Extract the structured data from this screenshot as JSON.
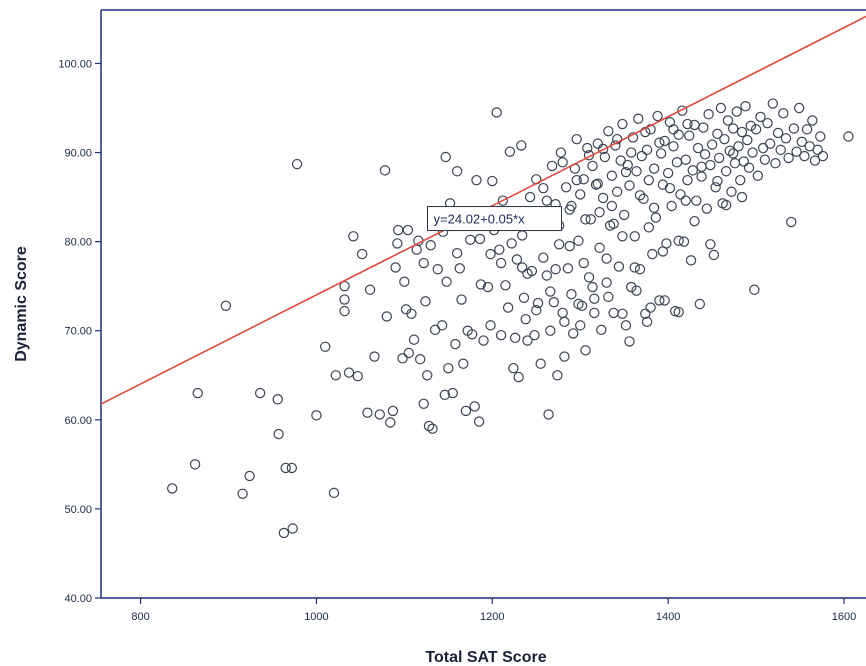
{
  "chart_data": {
    "type": "scatter",
    "title": "",
    "xlabel": "Total SAT Score",
    "ylabel": "Dynamic Score",
    "xlim": [
      755,
      1625
    ],
    "ylim": [
      40,
      106
    ],
    "x_ticks": [
      800,
      1000,
      1200,
      1400,
      1600
    ],
    "x_tick_labels": [
      "800",
      "1000",
      "1200",
      "1400",
      "1600"
    ],
    "y_ticks": [
      40,
      50,
      60,
      70,
      80,
      90,
      100
    ],
    "y_tick_labels": [
      "40.00",
      "50.00",
      "60.00",
      "70.00",
      "80.00",
      "90.00",
      "100.00"
    ],
    "grid": false,
    "fit_line": {
      "intercept": 24.02,
      "slope": 0.05,
      "label": "y=24.02+0.05*x"
    },
    "marker": {
      "shape": "open-circle",
      "color": "#3b4452"
    },
    "line_color": "#e0493a",
    "axis_color": "#1c2f7a",
    "points": [
      [
        836,
        52.3
      ],
      [
        862,
        55.0
      ],
      [
        865,
        63.0
      ],
      [
        897,
        72.8
      ],
      [
        916,
        51.7
      ],
      [
        924,
        53.7
      ],
      [
        936,
        63.0
      ],
      [
        956,
        62.3
      ],
      [
        957,
        58.4
      ],
      [
        963,
        47.3
      ],
      [
        965,
        54.6
      ],
      [
        972,
        54.6
      ],
      [
        973,
        47.8
      ],
      [
        978,
        88.7
      ],
      [
        1000,
        60.5
      ],
      [
        1010,
        68.2
      ],
      [
        1020,
        51.8
      ],
      [
        1022,
        65.0
      ],
      [
        1032,
        75.0
      ],
      [
        1032,
        73.5
      ],
      [
        1032,
        72.2
      ],
      [
        1037,
        65.3
      ],
      [
        1042,
        80.6
      ],
      [
        1047,
        64.9
      ],
      [
        1052,
        78.6
      ],
      [
        1058,
        60.8
      ],
      [
        1061,
        74.6
      ],
      [
        1066,
        67.1
      ],
      [
        1072,
        60.6
      ],
      [
        1078,
        88.0
      ],
      [
        1080,
        71.6
      ],
      [
        1084,
        59.7
      ],
      [
        1087,
        61.0
      ],
      [
        1090,
        77.1
      ],
      [
        1092,
        79.8
      ],
      [
        1093,
        81.3
      ],
      [
        1098,
        66.9
      ],
      [
        1100,
        75.5
      ],
      [
        1102,
        72.4
      ],
      [
        1104,
        81.3
      ],
      [
        1105,
        67.5
      ],
      [
        1108,
        71.9
      ],
      [
        1111,
        69.0
      ],
      [
        1114,
        79.1
      ],
      [
        1116,
        80.1
      ],
      [
        1118,
        66.8
      ],
      [
        1122,
        61.8
      ],
      [
        1124,
        73.3
      ],
      [
        1126,
        65.0
      ],
      [
        1128,
        59.3
      ],
      [
        1130,
        79.6
      ],
      [
        1132,
        59.0
      ],
      [
        1135,
        70.1
      ],
      [
        1138,
        76.9
      ],
      [
        1140,
        82.9
      ],
      [
        1143,
        70.6
      ],
      [
        1146,
        62.8
      ],
      [
        1147,
        89.5
      ],
      [
        1148,
        75.5
      ],
      [
        1150,
        65.8
      ],
      [
        1152,
        84.3
      ],
      [
        1155,
        63.0
      ],
      [
        1158,
        68.5
      ],
      [
        1160,
        87.9
      ],
      [
        1163,
        77.0
      ],
      [
        1165,
        73.5
      ],
      [
        1167,
        66.3
      ],
      [
        1170,
        61.0
      ],
      [
        1172,
        70.0
      ],
      [
        1175,
        80.2
      ],
      [
        1177,
        69.6
      ],
      [
        1180,
        61.5
      ],
      [
        1182,
        86.9
      ],
      [
        1185,
        59.8
      ],
      [
        1187,
        75.2
      ],
      [
        1190,
        68.9
      ],
      [
        1193,
        82.5
      ],
      [
        1195,
        74.9
      ],
      [
        1198,
        70.6
      ],
      [
        1200,
        86.8
      ],
      [
        1205,
        94.5
      ],
      [
        1208,
        79.1
      ],
      [
        1210,
        69.5
      ],
      [
        1212,
        84.6
      ],
      [
        1215,
        75.1
      ],
      [
        1218,
        72.6
      ],
      [
        1220,
        90.1
      ],
      [
        1224,
        65.8
      ],
      [
        1226,
        69.2
      ],
      [
        1228,
        78.0
      ],
      [
        1230,
        64.8
      ],
      [
        1233,
        90.8
      ],
      [
        1236,
        73.7
      ],
      [
        1238,
        71.3
      ],
      [
        1240,
        68.9
      ],
      [
        1243,
        85.0
      ],
      [
        1245,
        76.7
      ],
      [
        1248,
        69.5
      ],
      [
        1250,
        87.0
      ],
      [
        1252,
        73.1
      ],
      [
        1255,
        66.3
      ],
      [
        1258,
        86.0
      ],
      [
        1260,
        82.0
      ],
      [
        1262,
        76.2
      ],
      [
        1264,
        60.6
      ],
      [
        1266,
        70.0
      ],
      [
        1268,
        88.5
      ],
      [
        1270,
        73.2
      ],
      [
        1272,
        84.2
      ],
      [
        1274,
        65.0
      ],
      [
        1276,
        79.7
      ],
      [
        1278,
        90.0
      ],
      [
        1280,
        72.0
      ],
      [
        1282,
        67.1
      ],
      [
        1284,
        86.1
      ],
      [
        1286,
        77.0
      ],
      [
        1288,
        83.6
      ],
      [
        1290,
        74.1
      ],
      [
        1292,
        69.7
      ],
      [
        1294,
        88.2
      ],
      [
        1296,
        91.5
      ],
      [
        1298,
        80.1
      ],
      [
        1300,
        85.3
      ],
      [
        1302,
        72.8
      ],
      [
        1304,
        87.0
      ],
      [
        1306,
        67.8
      ],
      [
        1308,
        90.5
      ],
      [
        1310,
        76.0
      ],
      [
        1312,
        82.5
      ],
      [
        1314,
        88.5
      ],
      [
        1316,
        73.6
      ],
      [
        1318,
        86.4
      ],
      [
        1320,
        91.0
      ],
      [
        1322,
        79.3
      ],
      [
        1324,
        70.1
      ],
      [
        1326,
        84.9
      ],
      [
        1328,
        89.5
      ],
      [
        1330,
        75.4
      ],
      [
        1332,
        92.4
      ],
      [
        1334,
        81.8
      ],
      [
        1336,
        87.4
      ],
      [
        1338,
        72.0
      ],
      [
        1340,
        90.8
      ],
      [
        1342,
        85.6
      ],
      [
        1344,
        77.2
      ],
      [
        1346,
        89.1
      ],
      [
        1348,
        93.2
      ],
      [
        1350,
        83.0
      ],
      [
        1352,
        70.6
      ],
      [
        1354,
        88.6
      ],
      [
        1356,
        86.3
      ],
      [
        1358,
        74.9
      ],
      [
        1360,
        91.7
      ],
      [
        1362,
        80.6
      ],
      [
        1364,
        87.9
      ],
      [
        1366,
        93.8
      ],
      [
        1368,
        76.9
      ],
      [
        1370,
        89.6
      ],
      [
        1372,
        84.8
      ],
      [
        1374,
        71.9
      ],
      [
        1376,
        90.3
      ],
      [
        1378,
        86.9
      ],
      [
        1380,
        92.6
      ],
      [
        1382,
        78.6
      ],
      [
        1384,
        88.2
      ],
      [
        1386,
        82.7
      ],
      [
        1388,
        94.1
      ],
      [
        1390,
        73.4
      ],
      [
        1392,
        89.9
      ],
      [
        1394,
        86.4
      ],
      [
        1396,
        91.3
      ],
      [
        1398,
        79.8
      ],
      [
        1400,
        87.7
      ],
      [
        1402,
        93.4
      ],
      [
        1404,
        84.0
      ],
      [
        1406,
        90.7
      ],
      [
        1408,
        72.2
      ],
      [
        1410,
        88.9
      ],
      [
        1412,
        92.0
      ],
      [
        1414,
        85.3
      ],
      [
        1416,
        94.7
      ],
      [
        1418,
        80.0
      ],
      [
        1420,
        89.2
      ],
      [
        1422,
        86.9
      ],
      [
        1424,
        91.9
      ],
      [
        1426,
        77.9
      ],
      [
        1428,
        88.0
      ],
      [
        1430,
        93.1
      ],
      [
        1432,
        84.6
      ],
      [
        1434,
        90.5
      ],
      [
        1436,
        73.0
      ],
      [
        1438,
        87.3
      ],
      [
        1440,
        92.8
      ],
      [
        1442,
        89.8
      ],
      [
        1444,
        83.7
      ],
      [
        1446,
        94.3
      ],
      [
        1448,
        88.6
      ],
      [
        1450,
        90.9
      ],
      [
        1452,
        78.5
      ],
      [
        1454,
        86.1
      ],
      [
        1456,
        92.1
      ],
      [
        1458,
        89.4
      ],
      [
        1460,
        95.0
      ],
      [
        1462,
        84.3
      ],
      [
        1464,
        91.5
      ],
      [
        1466,
        87.9
      ],
      [
        1468,
        93.6
      ],
      [
        1470,
        90.2
      ],
      [
        1472,
        85.6
      ],
      [
        1474,
        92.7
      ],
      [
        1476,
        88.8
      ],
      [
        1478,
        94.6
      ],
      [
        1480,
        90.7
      ],
      [
        1482,
        86.9
      ],
      [
        1484,
        92.3
      ],
      [
        1486,
        89.0
      ],
      [
        1488,
        95.2
      ],
      [
        1490,
        91.4
      ],
      [
        1492,
        88.3
      ],
      [
        1494,
        93.0
      ],
      [
        1496,
        90.0
      ],
      [
        1498,
        74.6
      ],
      [
        1500,
        92.6
      ],
      [
        1502,
        87.4
      ],
      [
        1505,
        94.0
      ],
      [
        1508,
        90.5
      ],
      [
        1510,
        89.2
      ],
      [
        1513,
        93.3
      ],
      [
        1516,
        91.0
      ],
      [
        1519,
        95.5
      ],
      [
        1522,
        88.8
      ],
      [
        1525,
        92.2
      ],
      [
        1528,
        90.3
      ],
      [
        1531,
        94.4
      ],
      [
        1534,
        91.6
      ],
      [
        1537,
        89.4
      ],
      [
        1540,
        82.2
      ],
      [
        1543,
        92.7
      ],
      [
        1546,
        90.1
      ],
      [
        1549,
        95.0
      ],
      [
        1552,
        91.2
      ],
      [
        1555,
        89.6
      ],
      [
        1558,
        92.6
      ],
      [
        1561,
        90.7
      ],
      [
        1564,
        93.6
      ],
      [
        1567,
        89.1
      ],
      [
        1570,
        90.3
      ],
      [
        1573,
        91.8
      ],
      [
        1576,
        89.6
      ],
      [
        1605,
        91.8
      ],
      [
        1320,
        86.5
      ],
      [
        1336,
        84.0
      ],
      [
        1352,
        87.8
      ],
      [
        1368,
        85.2
      ],
      [
        1384,
        83.8
      ],
      [
        1402,
        86.0
      ],
      [
        1420,
        84.6
      ],
      [
        1438,
        88.4
      ],
      [
        1456,
        86.8
      ],
      [
        1474,
        89.9
      ],
      [
        1330,
        78.1
      ],
      [
        1348,
        80.6
      ],
      [
        1362,
        77.1
      ],
      [
        1378,
        81.6
      ],
      [
        1394,
        78.9
      ],
      [
        1412,
        80.1
      ],
      [
        1430,
        82.3
      ],
      [
        1448,
        79.7
      ],
      [
        1466,
        84.1
      ],
      [
        1484,
        85.0
      ],
      [
        1280,
        88.9
      ],
      [
        1296,
        86.9
      ],
      [
        1310,
        89.7
      ],
      [
        1326,
        90.4
      ],
      [
        1342,
        91.5
      ],
      [
        1358,
        90.0
      ],
      [
        1374,
        92.3
      ],
      [
        1390,
        91.1
      ],
      [
        1406,
        92.6
      ],
      [
        1422,
        93.2
      ],
      [
        1300,
        70.6
      ],
      [
        1316,
        72.0
      ],
      [
        1332,
        73.8
      ],
      [
        1348,
        71.9
      ],
      [
        1364,
        74.5
      ],
      [
        1380,
        72.6
      ],
      [
        1396,
        73.4
      ],
      [
        1412,
        72.1
      ],
      [
        1376,
        71.0
      ],
      [
        1356,
        68.8
      ],
      [
        1250,
        72.3
      ],
      [
        1266,
        74.4
      ],
      [
        1282,
        71.0
      ],
      [
        1298,
        73.0
      ],
      [
        1314,
        74.9
      ],
      [
        1240,
        76.4
      ],
      [
        1258,
        78.2
      ],
      [
        1272,
        76.9
      ],
      [
        1288,
        79.5
      ],
      [
        1304,
        77.6
      ],
      [
        1202,
        81.3
      ],
      [
        1218,
        83.0
      ],
      [
        1234,
        80.7
      ],
      [
        1248,
        82.4
      ],
      [
        1262,
        84.6
      ],
      [
        1276,
        81.8
      ],
      [
        1290,
        84.0
      ],
      [
        1306,
        82.5
      ],
      [
        1322,
        83.3
      ],
      [
        1338,
        82.0
      ],
      [
        1170,
        82.9
      ],
      [
        1186,
        80.3
      ],
      [
        1198,
        78.6
      ],
      [
        1210,
        77.6
      ],
      [
        1222,
        79.8
      ],
      [
        1234,
        77.1
      ],
      [
        1160,
        78.7
      ],
      [
        1144,
        81.1
      ],
      [
        1132,
        83.3
      ],
      [
        1122,
        77.6
      ]
    ]
  }
}
